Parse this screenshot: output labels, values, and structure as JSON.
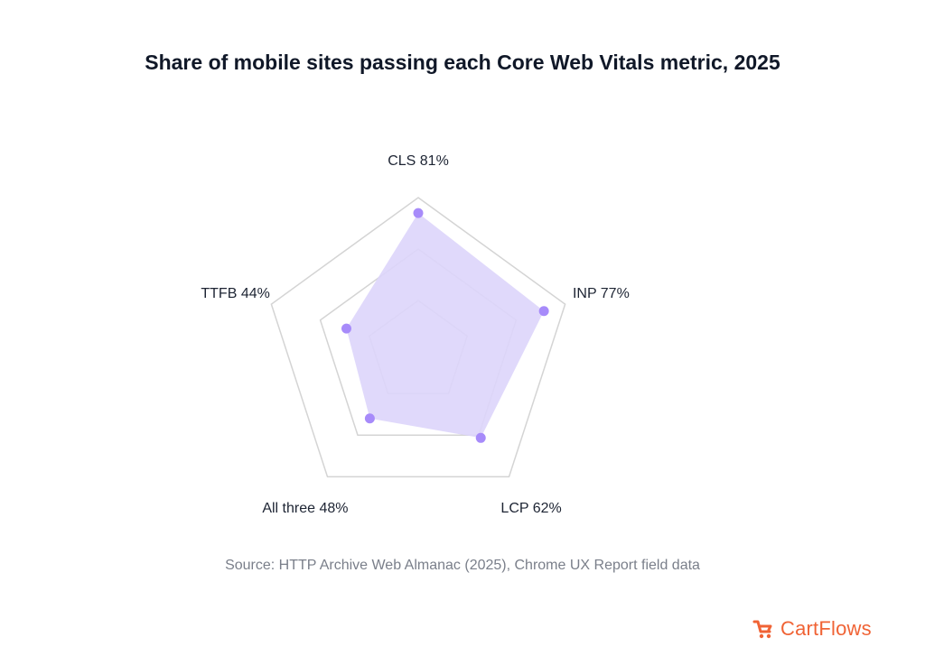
{
  "page": {
    "title": "Share of mobile sites passing each Core Web Vitals metric, 2025",
    "source": "Source: HTTP Archive Web Almanac (2025), Chrome UX Report field data",
    "brand": "CartFlows"
  },
  "colors": {
    "accent": "#a78bfa",
    "fill": "#ddd5fb",
    "grid": "#d4d4d4",
    "brand": "#f06335"
  },
  "chart_data": {
    "type": "radar",
    "title": "Share of mobile sites passing each Core Web Vitals metric, 2025",
    "unit": "%",
    "range": [
      0,
      100
    ],
    "grid_levels": [
      30,
      60,
      90
    ],
    "categories": [
      "CLS",
      "INP",
      "LCP",
      "All three",
      "TTFB"
    ],
    "values": [
      81,
      77,
      62,
      48,
      44
    ],
    "labels": [
      "CLS 81%",
      "INP 77%",
      "LCP 62%",
      "All three 48%",
      "TTFB 44%"
    ],
    "legend": "none"
  }
}
